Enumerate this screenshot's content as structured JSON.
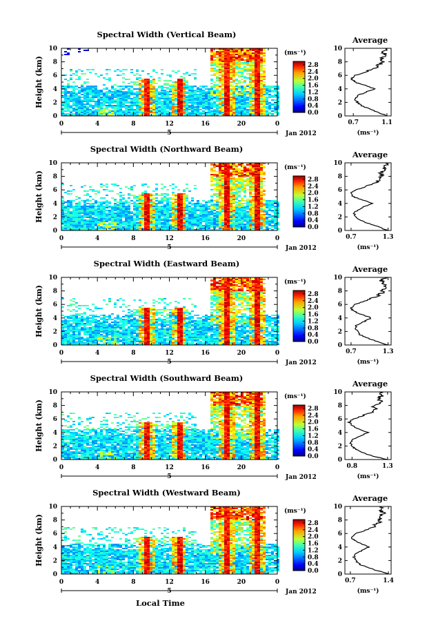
{
  "chart_data": [
    {
      "type": "heatmap",
      "title": "Spectral Width (Vertical Beam)",
      "ylabel": "Height (km)",
      "x_ticks": [
        "0",
        "4",
        "8",
        "12",
        "16",
        "20",
        "0"
      ],
      "y_ticks": [
        "0",
        "2",
        "4",
        "6",
        "8",
        "10"
      ],
      "xlim": [
        0,
        24
      ],
      "ylim": [
        0,
        10
      ],
      "date_marker": "5",
      "date_label": "Jan 2012",
      "colorbar": {
        "unit": "(ms⁻¹)",
        "ticks": [
          "2.8",
          "2.4",
          "2.0",
          "1.6",
          "1.2",
          "0.8",
          "0.4",
          "0.0"
        ],
        "range": [
          0.0,
          3.0
        ]
      },
      "profile": {
        "title": "Average",
        "xlabel": "(ms⁻¹)",
        "x_ticks": [
          "0.7",
          "1.1"
        ],
        "xlim": [
          0.6,
          1.15
        ],
        "y_ticks": [
          "0",
          "2",
          "4",
          "6",
          "8",
          "10"
        ],
        "heights": [
          0,
          0.5,
          1,
          1.5,
          2,
          2.5,
          3,
          3.5,
          4,
          4.5,
          5,
          5.5,
          6,
          6.5,
          7,
          7.5,
          8,
          8.5,
          9,
          9.5,
          10
        ],
        "values": [
          1.1,
          1.0,
          0.9,
          0.8,
          0.75,
          0.72,
          0.75,
          0.85,
          0.95,
          0.85,
          0.72,
          0.68,
          0.72,
          0.85,
          0.95,
          1.0,
          1.05,
          1.03,
          1.08,
          1.05,
          1.1
        ]
      }
    },
    {
      "type": "heatmap",
      "title": "Spectral Width (Northward Beam)",
      "ylabel": "Height (km)",
      "x_ticks": [
        "0",
        "4",
        "8",
        "12",
        "16",
        "20",
        "0"
      ],
      "y_ticks": [
        "0",
        "2",
        "4",
        "6",
        "8",
        "10"
      ],
      "xlim": [
        0,
        24
      ],
      "ylim": [
        0,
        10
      ],
      "date_marker": "5",
      "date_label": "Jan 2012",
      "colorbar": {
        "unit": "(ms⁻¹)",
        "ticks": [
          "2.8",
          "2.4",
          "2.0",
          "1.6",
          "1.2",
          "0.8",
          "0.4",
          "0.0"
        ],
        "range": [
          0.0,
          3.0
        ]
      },
      "profile": {
        "title": "Average",
        "xlabel": "(ms⁻¹)",
        "x_ticks": [
          "0.7",
          "1.3"
        ],
        "xlim": [
          0.6,
          1.35
        ],
        "y_ticks": [
          "0",
          "2",
          "4",
          "6",
          "8",
          "10"
        ],
        "heights": [
          0,
          0.5,
          1,
          1.5,
          2,
          2.5,
          3,
          3.5,
          4,
          4.5,
          5,
          5.5,
          6,
          6.5,
          7,
          7.5,
          8,
          8.5,
          9,
          9.5,
          10
        ],
        "values": [
          1.3,
          1.15,
          1.0,
          0.85,
          0.78,
          0.75,
          0.8,
          0.9,
          1.05,
          0.88,
          0.74,
          0.7,
          0.78,
          0.95,
          1.1,
          1.15,
          1.2,
          1.18,
          1.25,
          1.22,
          1.28
        ]
      }
    },
    {
      "type": "heatmap",
      "title": "Spectral Width (Eastward Beam)",
      "ylabel": "Height (km)",
      "x_ticks": [
        "0",
        "4",
        "8",
        "12",
        "16",
        "20",
        "0"
      ],
      "y_ticks": [
        "0",
        "2",
        "4",
        "6",
        "8",
        "10"
      ],
      "xlim": [
        0,
        24
      ],
      "ylim": [
        0,
        10
      ],
      "date_marker": "5",
      "date_label": "Jan 2012",
      "colorbar": {
        "unit": "(ms⁻¹)",
        "ticks": [
          "2.8",
          "2.4",
          "2.0",
          "1.6",
          "1.2",
          "0.8",
          "0.4",
          "0.0"
        ],
        "range": [
          0.0,
          3.0
        ]
      },
      "profile": {
        "title": "Average",
        "xlabel": "(ms⁻¹)",
        "x_ticks": [
          "0.7",
          "1.3"
        ],
        "xlim": [
          0.6,
          1.35
        ],
        "y_ticks": [
          "0",
          "2",
          "4",
          "6",
          "8",
          "10"
        ],
        "heights": [
          0,
          0.5,
          1,
          1.5,
          2,
          2.5,
          3,
          3.5,
          4,
          4.5,
          5,
          5.5,
          6,
          6.5,
          7,
          7.5,
          8,
          8.5,
          9,
          9.5,
          10
        ],
        "values": [
          1.3,
          1.12,
          0.98,
          0.85,
          0.8,
          0.76,
          0.8,
          0.92,
          1.02,
          0.88,
          0.74,
          0.7,
          0.76,
          0.92,
          1.08,
          1.18,
          1.22,
          1.28,
          1.25,
          1.2,
          1.26
        ]
      }
    },
    {
      "type": "heatmap",
      "title": "Spectral Width (Southward Beam)",
      "ylabel": "Height (km)",
      "x_ticks": [
        "0",
        "4",
        "8",
        "12",
        "16",
        "20",
        "0"
      ],
      "y_ticks": [
        "0",
        "2",
        "4",
        "6",
        "8",
        "10"
      ],
      "xlim": [
        0,
        24
      ],
      "ylim": [
        0,
        10
      ],
      "date_marker": "5",
      "date_label": "Jan 2012",
      "colorbar": {
        "unit": "(ms⁻¹)",
        "ticks": [
          "2.8",
          "2.4",
          "2.0",
          "1.6",
          "1.2",
          "0.8",
          "0.4",
          "0.0"
        ],
        "range": [
          0.0,
          3.0
        ]
      },
      "profile": {
        "title": "Average",
        "xlabel": "(ms⁻¹)",
        "x_ticks": [
          "0.8",
          "1.3"
        ],
        "xlim": [
          0.7,
          1.35
        ],
        "y_ticks": [
          "0",
          "2",
          "4",
          "6",
          "8",
          "10"
        ],
        "heights": [
          0,
          0.5,
          1,
          1.5,
          2,
          2.5,
          3,
          3.5,
          4,
          4.5,
          5,
          5.5,
          6,
          6.5,
          7,
          7.5,
          8,
          8.5,
          9,
          9.5,
          10
        ],
        "values": [
          1.3,
          1.1,
          0.95,
          0.85,
          0.8,
          0.78,
          0.82,
          0.92,
          1.02,
          0.9,
          0.8,
          0.76,
          0.82,
          0.96,
          1.06,
          1.14,
          1.1,
          1.2,
          1.16,
          1.22,
          1.18
        ]
      }
    },
    {
      "type": "heatmap",
      "title": "Spectral Width (Westward Beam)",
      "ylabel": "Height (km)",
      "x_ticks": [
        "0",
        "4",
        "8",
        "12",
        "16",
        "20",
        "0"
      ],
      "y_ticks": [
        "0",
        "2",
        "4",
        "6",
        "8",
        "10"
      ],
      "xlim": [
        0,
        24
      ],
      "ylim": [
        0,
        10
      ],
      "date_marker": "5",
      "date_label": "Jan 2012",
      "xlabel": "Local Time",
      "colorbar": {
        "unit": "(ms⁻¹)",
        "ticks": [
          "2.8",
          "2.4",
          "2.0",
          "1.6",
          "1.2",
          "0.8",
          "0.4",
          "0.0"
        ],
        "range": [
          0.0,
          3.0
        ]
      },
      "profile": {
        "title": "Average",
        "xlabel": "(ms⁻¹)",
        "x_ticks": [
          "0.7",
          "1.4"
        ],
        "xlim": [
          0.6,
          1.45
        ],
        "y_ticks": [
          "0",
          "2",
          "4",
          "6",
          "8",
          "10"
        ],
        "heights": [
          0,
          0.5,
          1,
          1.5,
          2,
          2.5,
          3,
          3.5,
          4,
          4.5,
          5,
          5.5,
          6,
          6.5,
          7,
          7.5,
          8,
          8.5,
          9,
          9.5,
          10
        ],
        "values": [
          1.4,
          1.2,
          1.0,
          0.86,
          0.8,
          0.76,
          0.8,
          0.92,
          1.05,
          0.9,
          0.76,
          0.72,
          0.8,
          0.98,
          1.12,
          1.2,
          1.26,
          1.22,
          1.32,
          1.25,
          1.3
        ]
      }
    }
  ]
}
